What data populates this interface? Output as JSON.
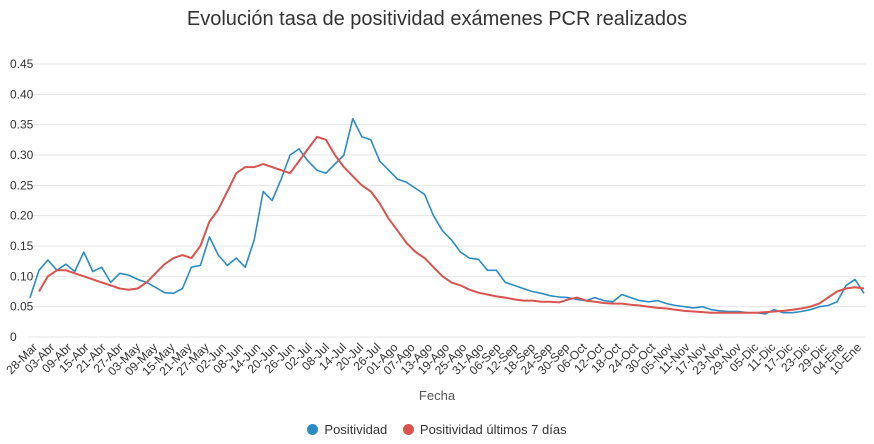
{
  "chart_data": {
    "type": "line",
    "title": "Evolución tasa de positividad exámenes PCR realizados",
    "xlabel": "Fecha",
    "ylabel": "",
    "ylim": [
      0,
      0.45
    ],
    "yticks": [
      0,
      0.05,
      0.1,
      0.15,
      0.2,
      0.25,
      0.3,
      0.35,
      0.4,
      0.45
    ],
    "ytick_labels": [
      "0",
      "0.05",
      "0.10",
      "0.15",
      "0.20",
      "0.25",
      "0.30",
      "0.35",
      "0.40",
      "0.45"
    ],
    "grid": true,
    "legend_position": "bottom",
    "x_tick_labels": [
      "28-Mar",
      "03-Abr",
      "09-Abr",
      "15-Abr",
      "21-Abr",
      "27-Abr",
      "03-May",
      "09-May",
      "15-May",
      "21-May",
      "27-May",
      "02-Jun",
      "08-Jun",
      "14-Jun",
      "20-Jun",
      "26-Jun",
      "02-Jul",
      "08-Jul",
      "14-Jul",
      "20-Jul",
      "26-Jul",
      "01-Ago",
      "07-Ago",
      "13-Ago",
      "19-Ago",
      "25-Ago",
      "31-Ago",
      "06-Sep",
      "12-Sep",
      "18-Sep",
      "24-Sep",
      "30-Sep",
      "06-Oct",
      "12-Oct",
      "18-Oct",
      "24-Oct",
      "30-Oct",
      "05-Nov",
      "11-Nov",
      "17-Nov",
      "23-Nov",
      "29-Nov",
      "05-Dic",
      "11-Dic",
      "17-Dic",
      "23-Dic",
      "29-Dic",
      "04-Ene",
      "10-Ene"
    ],
    "series": [
      {
        "name": "Positividad",
        "color": "#2b8cc4",
        "values": [
          0.065,
          0.11,
          0.127,
          0.11,
          0.12,
          0.108,
          0.14,
          0.108,
          0.115,
          0.09,
          0.105,
          0.102,
          0.095,
          0.09,
          0.082,
          0.073,
          0.072,
          0.08,
          0.115,
          0.118,
          0.165,
          0.135,
          0.118,
          0.13,
          0.115,
          0.16,
          0.24,
          0.225,
          0.26,
          0.3,
          0.31,
          0.29,
          0.275,
          0.27,
          0.285,
          0.3,
          0.36,
          0.33,
          0.325,
          0.29,
          0.275,
          0.26,
          0.255,
          0.245,
          0.235,
          0.2,
          0.175,
          0.16,
          0.14,
          0.13,
          0.128,
          0.11,
          0.11,
          0.09,
          0.085,
          0.08,
          0.075,
          0.072,
          0.068,
          0.066,
          0.065,
          0.062,
          0.06,
          0.065,
          0.06,
          0.058,
          0.07,
          0.065,
          0.06,
          0.058,
          0.06,
          0.055,
          0.052,
          0.05,
          0.048,
          0.05,
          0.045,
          0.043,
          0.042,
          0.042,
          0.04,
          0.04,
          0.038,
          0.045,
          0.04,
          0.04,
          0.042,
          0.045,
          0.05,
          0.052,
          0.058,
          0.085,
          0.095,
          0.072
        ]
      },
      {
        "name": "Positividad últimos 7 días",
        "color": "#d9534f",
        "values": [
          null,
          0.075,
          0.1,
          0.11,
          0.11,
          0.105,
          0.1,
          0.095,
          0.09,
          0.085,
          0.08,
          0.078,
          0.08,
          0.09,
          0.105,
          0.12,
          0.13,
          0.135,
          0.13,
          0.15,
          0.19,
          0.21,
          0.24,
          0.27,
          0.28,
          0.28,
          0.285,
          0.28,
          0.275,
          0.27,
          0.29,
          0.31,
          0.33,
          0.325,
          0.3,
          0.28,
          0.265,
          0.25,
          0.24,
          0.22,
          0.195,
          0.175,
          0.155,
          0.14,
          0.13,
          0.115,
          0.1,
          0.09,
          0.085,
          0.078,
          0.073,
          0.07,
          0.067,
          0.065,
          0.062,
          0.06,
          0.06,
          0.058,
          0.058,
          0.057,
          0.062,
          0.065,
          0.06,
          0.058,
          0.056,
          0.055,
          0.055,
          0.053,
          0.052,
          0.05,
          0.048,
          0.047,
          0.045,
          0.043,
          0.042,
          0.041,
          0.04,
          0.04,
          0.04,
          0.04,
          0.04,
          0.04,
          0.041,
          0.042,
          0.043,
          0.045,
          0.047,
          0.05,
          0.055,
          0.065,
          0.075,
          0.08,
          0.082,
          0.08
        ]
      }
    ]
  }
}
